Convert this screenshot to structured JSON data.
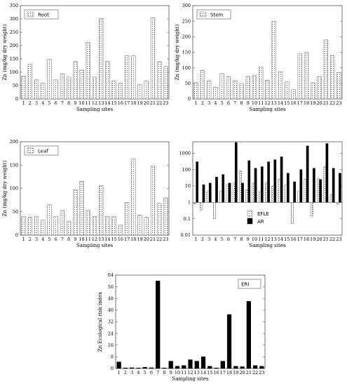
{
  "chart_data": [
    {
      "type": "bar",
      "title": "",
      "legend": "Root",
      "legend_position": "top-left",
      "xlabel": "Sampling sites",
      "ylabel": "Zn (mg/kg dry weight)",
      "ylim": [
        0,
        350
      ],
      "yticks": [
        0,
        50,
        100,
        150,
        200,
        250,
        300,
        350
      ],
      "categories": [
        "1",
        "2",
        "3",
        "4",
        "5",
        "6",
        "7",
        "8",
        "9",
        "10",
        "11",
        "12",
        "13",
        "14",
        "15",
        "16",
        "17",
        "18",
        "19",
        "20",
        "21",
        "22",
        "23"
      ],
      "values": [
        85,
        130,
        72,
        60,
        148,
        72,
        95,
        82,
        140,
        108,
        213,
        82,
        302,
        142,
        68,
        60,
        162,
        162,
        55,
        68,
        305,
        140,
        122
      ],
      "fill": "dotted",
      "grid": false
    },
    {
      "type": "bar",
      "title": "",
      "legend": "Stem",
      "legend_position": "top-left",
      "xlabel": "Sampling sites",
      "ylabel": "Zn (mg/kg dry weight)",
      "ylim": [
        0,
        300
      ],
      "yticks": [
        0,
        50,
        100,
        150,
        200,
        250,
        300
      ],
      "categories": [
        "1",
        "2",
        "3",
        "4",
        "5",
        "6",
        "7",
        "8",
        "9",
        "10",
        "11",
        "12",
        "13",
        "14",
        "15",
        "16",
        "17",
        "18",
        "19",
        "20",
        "21",
        "22",
        "23"
      ],
      "values": [
        52,
        92,
        58,
        38,
        82,
        72,
        58,
        50,
        72,
        75,
        103,
        60,
        250,
        88,
        55,
        30,
        145,
        150,
        52,
        72,
        190,
        140,
        85
      ],
      "fill": "dotted",
      "grid": false
    },
    {
      "type": "bar",
      "title": "",
      "legend": "Leaf",
      "legend_position": "top-left",
      "xlabel": "Sampling sites",
      "ylabel": "Zn (mg/kg dry weight)",
      "ylim": [
        0,
        200
      ],
      "yticks": [
        0,
        50,
        100,
        150,
        200
      ],
      "categories": [
        "1",
        "2",
        "3",
        "4",
        "5",
        "6",
        "7",
        "8",
        "9",
        "10",
        "11",
        "12",
        "13",
        "14",
        "15",
        "16",
        "17",
        "18",
        "19",
        "20",
        "21",
        "22",
        "23"
      ],
      "values": [
        40,
        38,
        40,
        32,
        65,
        40,
        53,
        30,
        97,
        115,
        53,
        40,
        106,
        40,
        40,
        22,
        70,
        163,
        43,
        38,
        148,
        68,
        80
      ],
      "fill": "dotted",
      "grid": false
    },
    {
      "type": "bar",
      "title": "",
      "scale": "log",
      "xlabel": "Sampling sites",
      "ylabel": "",
      "ylim": [
        0.01,
        5000
      ],
      "yticks": [
        0.01,
        0.1,
        1,
        10,
        100,
        1000
      ],
      "ytick_labels": [
        "0.01",
        "0.1",
        "1",
        "10",
        "100",
        "1000"
      ],
      "legend_position": "center",
      "categories": [
        "1",
        "2",
        "3",
        "4",
        "5",
        "6",
        "7",
        "8",
        "9",
        "10",
        "11",
        "12",
        "13",
        "14",
        "15",
        "16",
        "17",
        "18",
        "19",
        "20",
        "21",
        "22",
        "23"
      ],
      "series": [
        {
          "name": "EFLE",
          "fill": "dotted",
          "values": [
            0.8,
            0.35,
            5,
            0.1,
            5,
            12,
            15,
            85,
            6,
            15,
            5,
            15,
            10,
            25,
            12,
            0.05,
            5,
            25,
            0.15,
            30,
            150,
            3,
            0.75
          ]
        },
        {
          "name": "AR",
          "fill": "black",
          "values": [
            300,
            12,
            15,
            35,
            50,
            15,
            4500,
            15,
            350,
            120,
            150,
            300,
            400,
            600,
            60,
            18,
            100,
            2800,
            120,
            25,
            3900,
            120,
            60
          ]
        }
      ],
      "grid": false
    },
    {
      "type": "bar",
      "title": "",
      "legend": "ERI",
      "legend_position": "top-right",
      "xlabel": "Sampling sites",
      "ylabel": "Zn Ecological risk index",
      "ylim": [
        0,
        64
      ],
      "yticks": [
        0,
        8,
        16,
        24,
        32,
        40,
        48,
        56,
        64
      ],
      "categories": [
        "1",
        "2",
        "3",
        "4",
        "5",
        "6",
        "7",
        "8",
        "9",
        "10",
        "11",
        "12",
        "13",
        "14",
        "15",
        "16",
        "17",
        "18",
        "19",
        "20",
        "21",
        "22",
        "23"
      ],
      "values": [
        4.5,
        0.4,
        0.5,
        0.3,
        0.8,
        0.5,
        60,
        0.3,
        5,
        1.5,
        2,
        6,
        5,
        8,
        1.5,
        0.4,
        5,
        37,
        1.5,
        1.2,
        46,
        2,
        1.5
      ],
      "fill": "black",
      "grid": false
    }
  ]
}
